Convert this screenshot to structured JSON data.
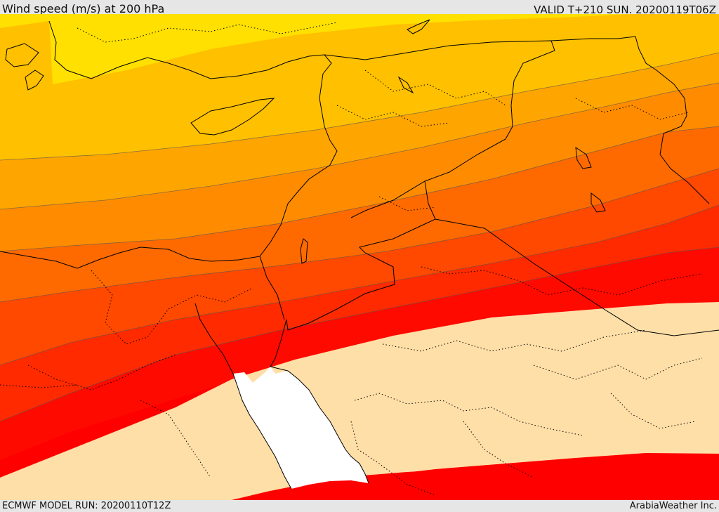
{
  "header": {
    "title": "Wind speed (m/s) at 200 hPa",
    "valid": "VALID T+210 SUN. 20200119T06Z"
  },
  "footer": {
    "model_run": "ECMWF MODEL RUN: 20200110T12Z",
    "credit": "ArabiaWeather Inc."
  },
  "colors": {
    "band_1": "#ffe000",
    "band_2": "#ffc000",
    "band_3": "#ffa500",
    "band_4": "#ff8c00",
    "band_5": "#ff6a00",
    "band_6": "#ff4800",
    "band_7": "#ff2a00",
    "band_8": "#ff0a00",
    "band_9": "#ff0000",
    "low_speed": "#ffdfa8",
    "sea": "#ffffff",
    "coastline": "#000000"
  }
}
